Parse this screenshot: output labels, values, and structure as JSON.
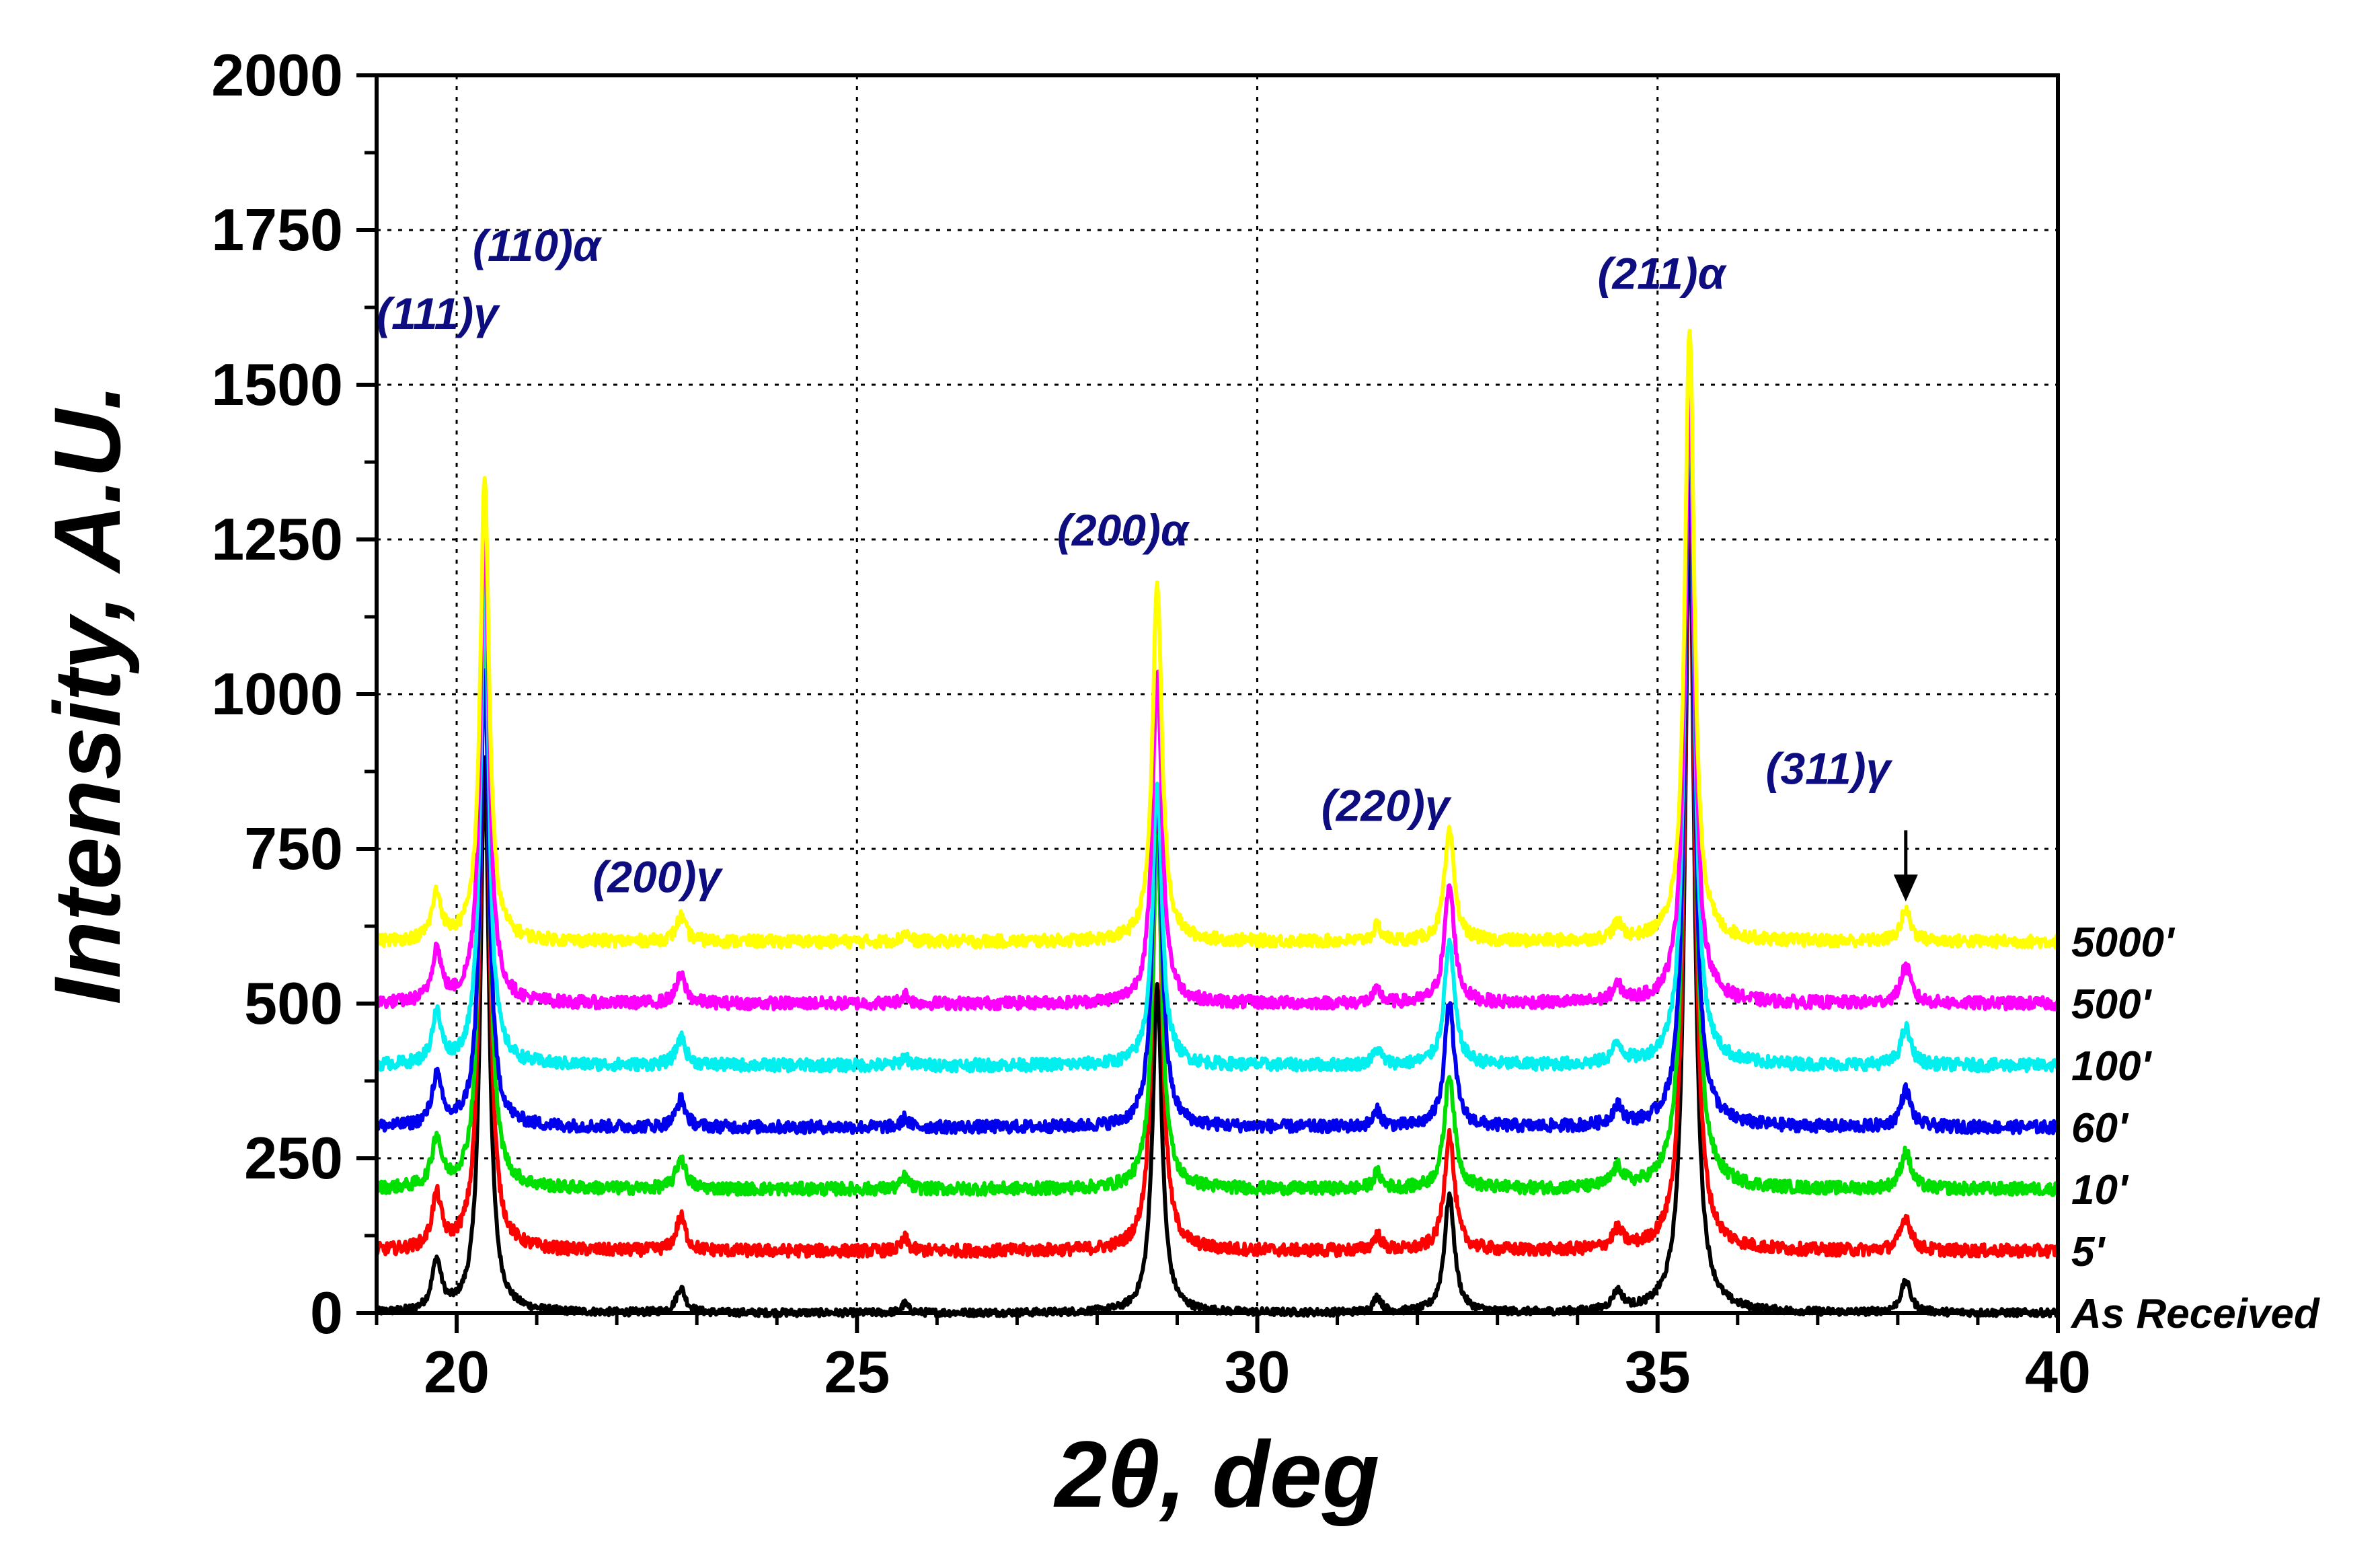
{
  "chart_data": {
    "type": "line",
    "title": "",
    "xlabel": "2θ, deg",
    "ylabel": "Intensity, A.U.",
    "xlim": [
      19,
      40
    ],
    "ylim": [
      0,
      2000
    ],
    "x_ticks": [
      "20",
      "25",
      "30",
      "35",
      "40"
    ],
    "x_tick_values": [
      20,
      25,
      30,
      35,
      40
    ],
    "y_ticks": [
      "0",
      "250",
      "500",
      "750",
      "1000",
      "1250",
      "1500",
      "1750",
      "2000"
    ],
    "y_tick_values": [
      0,
      250,
      500,
      750,
      1000,
      1250,
      1500,
      1750,
      2000
    ],
    "grid": true,
    "peak_positions": [
      19.75,
      20.35,
      22.8,
      25.6,
      28.75,
      31.5,
      32.4,
      34.5,
      35.4,
      38.1
    ],
    "peak_widths": [
      0.07,
      0.065,
      0.07,
      0.05,
      0.07,
      0.06,
      0.075,
      0.08,
      0.07,
      0.075
    ],
    "series": [
      {
        "name": "As Received",
        "color": "#000000",
        "offset": 0,
        "noise": 6,
        "peak_heights": [
          80,
          900,
          40,
          15,
          530,
          25,
          190,
          30,
          1300,
          50
        ]
      },
      {
        "name": "5'",
        "color": "#ff0000",
        "offset": 100,
        "noise": 10,
        "peak_heights": [
          85,
          1000,
          55,
          20,
          700,
          25,
          190,
          30,
          1300,
          55
        ]
      },
      {
        "name": "10'",
        "color": "#00e000",
        "offset": 200,
        "noise": 10,
        "peak_heights": [
          80,
          950,
          50,
          20,
          580,
          25,
          185,
          30,
          1300,
          60
        ]
      },
      {
        "name": "60'",
        "color": "#0000ee",
        "offset": 300,
        "noise": 10,
        "peak_heights": [
          80,
          740,
          45,
          15,
          550,
          25,
          200,
          30,
          1100,
          60
        ]
      },
      {
        "name": "100'",
        "color": "#00f0f0",
        "offset": 400,
        "noise": 10,
        "peak_heights": [
          80,
          780,
          45,
          15,
          460,
          25,
          200,
          30,
          1100,
          60
        ]
      },
      {
        "name": "500'",
        "color": "#ff00ff",
        "offset": 500,
        "noise": 10,
        "peak_heights": [
          85,
          780,
          45,
          15,
          540,
          20,
          190,
          25,
          1000,
          60
        ]
      },
      {
        "name": "5000'",
        "color": "#ffff00",
        "offset": 600,
        "noise": 10,
        "peak_heights": [
          75,
          750,
          40,
          15,
          580,
          25,
          175,
          25,
          990,
          50
        ]
      }
    ],
    "peak_annotations": [
      {
        "text": "(110)α",
        "x": 20.2,
        "y": 1700
      },
      {
        "text": "(111)γ",
        "x": 19.0,
        "y": 1590
      },
      {
        "text": "(200)γ",
        "x": 21.7,
        "y": 680
      },
      {
        "text": "(200)α",
        "x": 27.5,
        "y": 1240
      },
      {
        "text": "(220)γ",
        "x": 30.8,
        "y": 795
      },
      {
        "text": "(211)α",
        "x": 34.25,
        "y": 1655
      },
      {
        "text": "(311)γ",
        "x": 36.35,
        "y": 855
      }
    ],
    "arrow": {
      "x": 38.1,
      "from_y": 780,
      "to_y": 665
    }
  }
}
